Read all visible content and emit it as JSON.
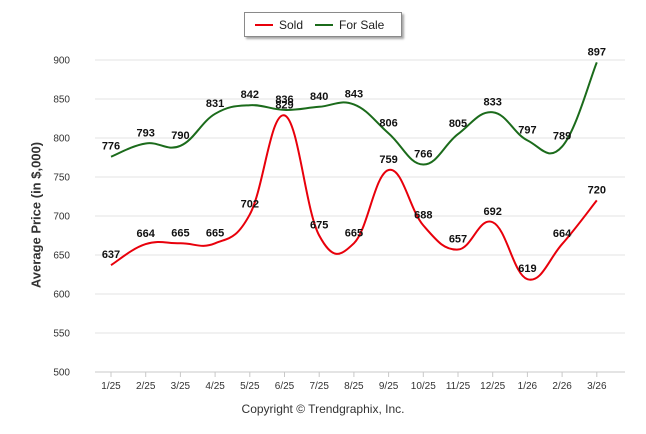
{
  "chart_data": {
    "type": "line",
    "title": "",
    "xlabel": "",
    "ylabel": "Average Price (in $,000)",
    "categories": [
      "1/25",
      "2/25",
      "3/25",
      "4/25",
      "5/25",
      "6/25",
      "7/25",
      "8/25",
      "9/25",
      "10/25",
      "11/25",
      "12/25",
      "1/26",
      "2/26",
      "3/26"
    ],
    "ylim": [
      500,
      900
    ],
    "yticks": [
      500,
      550,
      600,
      650,
      700,
      750,
      800,
      850,
      900
    ],
    "grid": true,
    "legend_position": "top-center",
    "series": [
      {
        "name": "Sold",
        "color": "#e8000b",
        "values": [
          637,
          664,
          665,
          665,
          702,
          829,
          675,
          665,
          759,
          688,
          657,
          692,
          619,
          664,
          720
        ]
      },
      {
        "name": "For Sale",
        "color": "#1b6b1b",
        "values": [
          776,
          793,
          790,
          831,
          842,
          836,
          840,
          843,
          806,
          766,
          805,
          833,
          797,
          789,
          897
        ]
      }
    ]
  },
  "legend": {
    "sold_label": "Sold",
    "for_sale_label": "For Sale",
    "sold_color": "#e8000b",
    "for_sale_color": "#1b6b1b"
  },
  "footer": {
    "copyright": "Copyright © Trendgraphix, Inc."
  }
}
